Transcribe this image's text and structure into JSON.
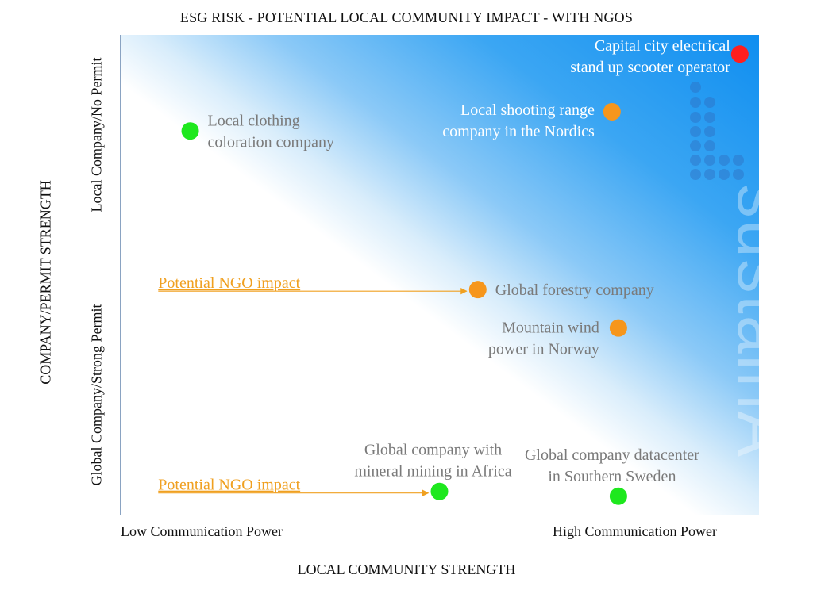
{
  "title": "ESG RISK - POTENTIAL LOCAL COMMUNITY IMPACT - WITH NGOS",
  "chart_data": {
    "type": "scatter",
    "title": "ESG RISK - POTENTIAL LOCAL COMMUNITY IMPACT - WITH NGOS",
    "xlabel": "LOCAL COMMUNITY STRENGTH",
    "ylabel": "COMPANY/PERMIT STRENGTH",
    "x_ticks": [
      "Low Communication Power",
      "High Communication Power"
    ],
    "y_ticks": [
      "Global Company/Strong Permit",
      "Local Company/No Permit"
    ],
    "xlim": [
      0,
      1
    ],
    "ylim": [
      0,
      1
    ],
    "grid": false,
    "colors": {
      "red": "#ff1e1e",
      "orange": "#f6961c",
      "green": "#1ee81e",
      "ngo": "#f0a020",
      "label_gray": "#7a7a7a"
    },
    "points": [
      {
        "label": [
          "Capital city electrical",
          "stand up scooter operator"
        ],
        "x": 0.97,
        "y": 0.96,
        "color": "red",
        "label_side": "left-above",
        "label_color": "white"
      },
      {
        "label": [
          "Local shooting range",
          "company in the Nordics"
        ],
        "x": 0.77,
        "y": 0.84,
        "color": "orange",
        "label_side": "left",
        "label_color": "white"
      },
      {
        "label": [
          "Local clothing",
          "coloration company"
        ],
        "x": 0.11,
        "y": 0.8,
        "color": "green",
        "label_side": "right",
        "label_color": "gray"
      },
      {
        "label": [
          "Global forestry company"
        ],
        "x": 0.56,
        "y": 0.47,
        "color": "orange",
        "label_side": "right",
        "label_color": "gray"
      },
      {
        "label": [
          "Mountain wind",
          "power in Norway"
        ],
        "x": 0.78,
        "y": 0.39,
        "color": "orange",
        "label_side": "left-below",
        "label_color": "gray"
      },
      {
        "label": [
          "Global company with",
          "mineral mining in Africa"
        ],
        "x": 0.5,
        "y": 0.05,
        "color": "green",
        "label_side": "above",
        "label_color": "gray"
      },
      {
        "label": [
          "Global company datacenter",
          " in Southern Sweden"
        ],
        "x": 0.78,
        "y": 0.04,
        "color": "green",
        "label_side": "above",
        "label_color": "gray"
      }
    ],
    "annotations": [
      {
        "text": "Potential NGO impact",
        "from_x": 0.06,
        "target_index": 3
      },
      {
        "text": "Potential NGO impact",
        "from_x": 0.06,
        "target_index": 5
      }
    ],
    "watermark": "sustainA"
  }
}
